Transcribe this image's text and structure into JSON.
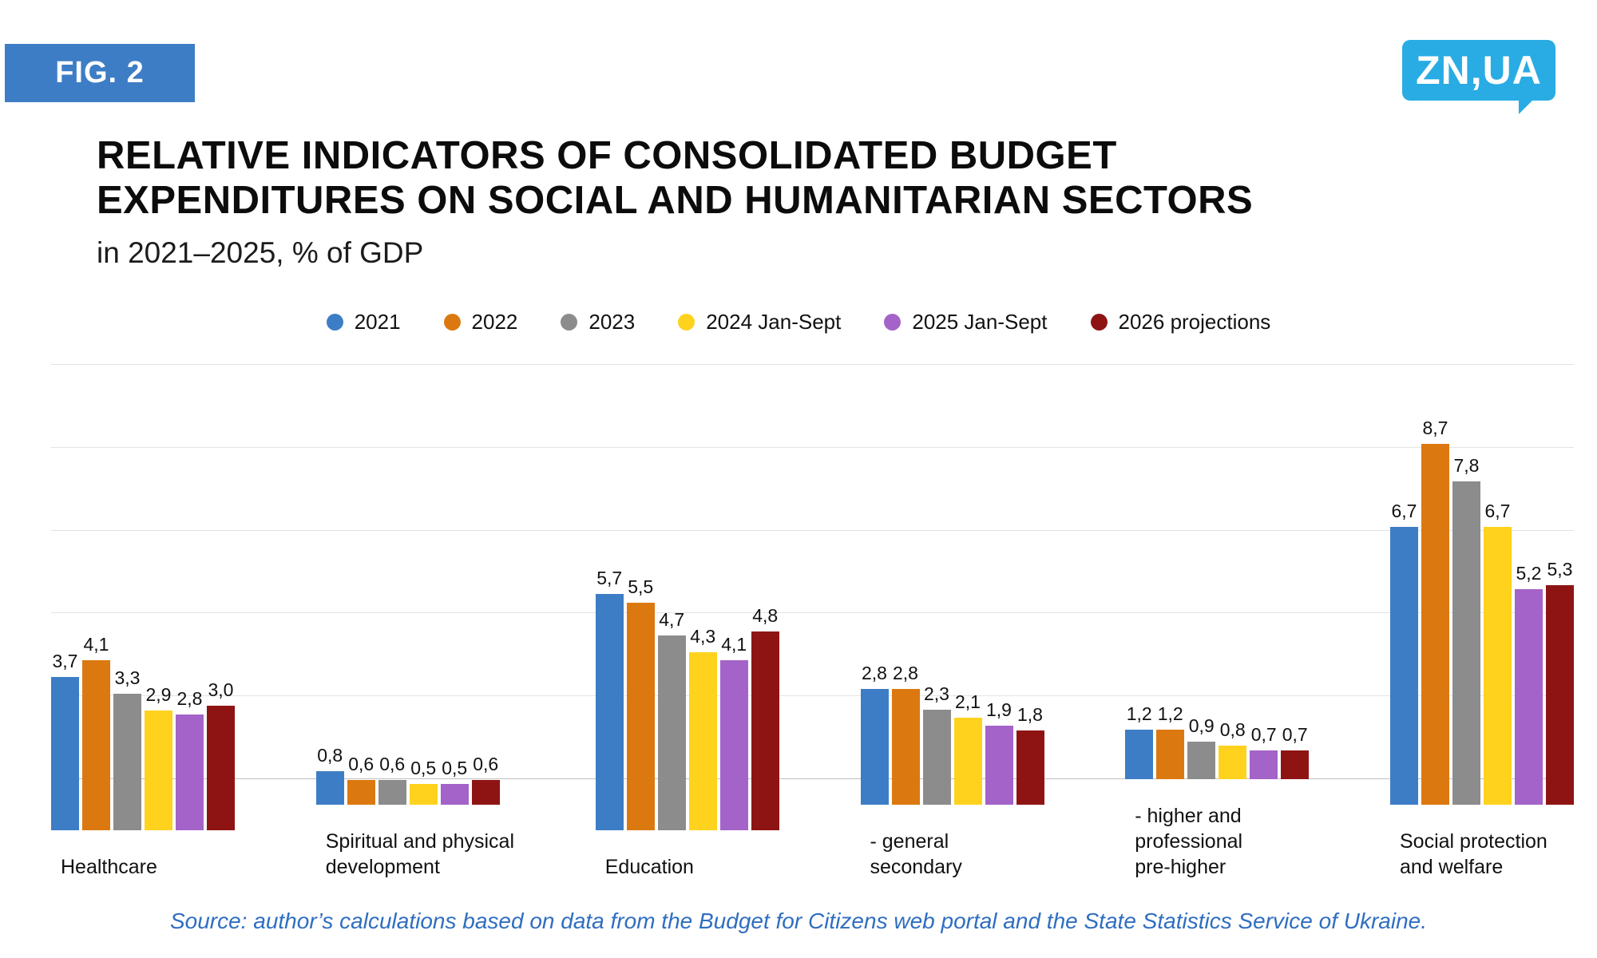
{
  "fig_label": "FIG. 2",
  "logo": {
    "text": "ZN,UA"
  },
  "title_line1": "RELATIVE INDICATORS OF CONSOLIDATED BUDGET",
  "title_line2": "EXPENDITURES ON SOCIAL AND HUMANITARIAN SECTORS",
  "subtitle": "in 2021–2025, % of GDP",
  "source": "Source: author’s calculations based on data from the Budget for Citizens web portal and the State Statistics Service of Ukraine.",
  "colors": {
    "fig_badge": "#3D7DC5",
    "logo_bg": "#29ACE3",
    "source_text": "#2F6EC0",
    "grid": "#E3E3E3",
    "axis": "#C2C2C2"
  },
  "chart_data": {
    "type": "bar",
    "title": "Relative indicators of consolidated budget expenditures on social and humanitarian sectors in 2021–2025, % of GDP",
    "xlabel": "",
    "ylabel": "% of GDP",
    "ylim": [
      0,
      10
    ],
    "grid_step": 2,
    "grid": true,
    "legend_position": "top",
    "value_label_format": "comma_decimal",
    "categories": [
      "Healthcare",
      "Spiritual and physical development",
      "Education",
      "- general secondary",
      "- higher and professional pre-higher",
      "Social protection and welfare"
    ],
    "category_display": [
      "Healthcare",
      "Spiritual and physical\ndevelopment",
      "Education",
      "- general\nsecondary",
      "- higher and\nprofessional\npre-higher",
      "Social protection\nand welfare"
    ],
    "series": [
      {
        "name": "2021",
        "color": "#3D7DC5",
        "values": [
          3.7,
          0.8,
          5.7,
          2.8,
          1.2,
          6.7
        ]
      },
      {
        "name": "2022",
        "color": "#DB7910",
        "values": [
          4.1,
          0.6,
          5.5,
          2.8,
          1.2,
          8.7
        ]
      },
      {
        "name": "2023",
        "color": "#8C8C8C",
        "values": [
          3.3,
          0.6,
          4.7,
          2.3,
          0.9,
          7.8
        ]
      },
      {
        "name": "2024 Jan-Sept",
        "color": "#FFD21E",
        "values": [
          2.9,
          0.5,
          4.3,
          2.1,
          0.8,
          6.7
        ]
      },
      {
        "name": "2025 Jan-Sept",
        "color": "#A463C8",
        "values": [
          2.8,
          0.5,
          4.1,
          1.9,
          0.7,
          5.2
        ]
      },
      {
        "name": "2026 projections",
        "color": "#8E1414",
        "values": [
          3.0,
          0.6,
          4.8,
          1.8,
          0.7,
          5.3
        ]
      }
    ]
  }
}
